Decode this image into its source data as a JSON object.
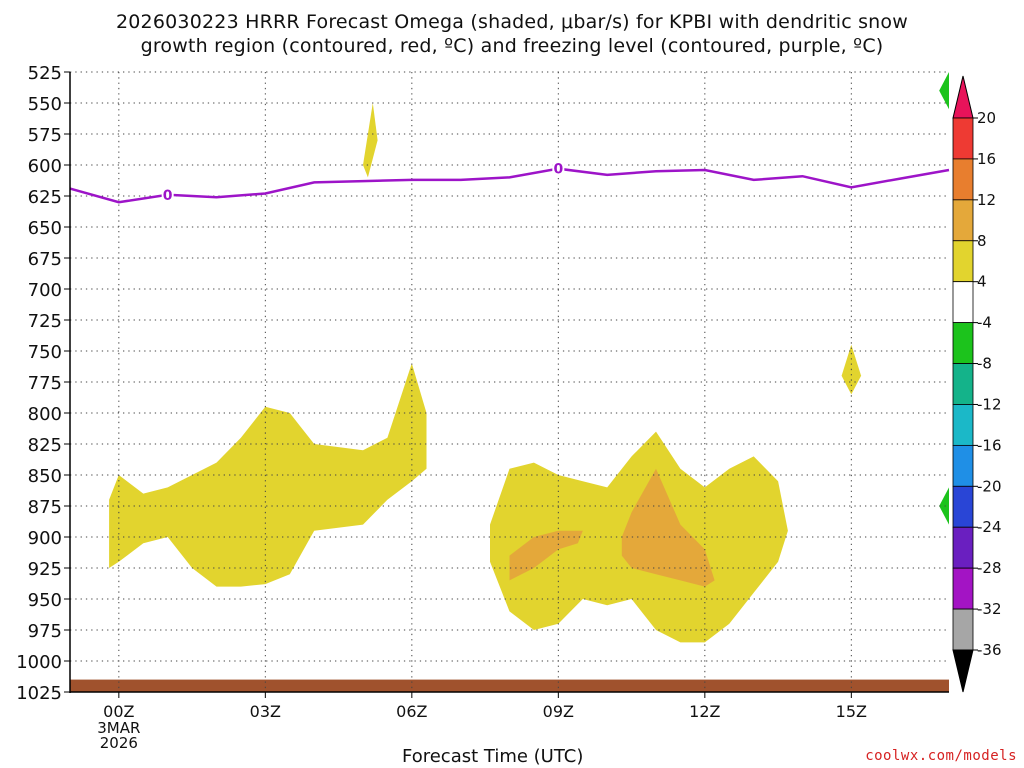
{
  "title_line1": "2026030223 HRRR Forecast Omega (shaded, μbar/s) for KPBI with dendritic snow",
  "title_line2": "growth region (contoured, red, ºC) and freezing level (contoured, purple, ºC)",
  "credit": "coolwx.com/models",
  "chart_data": {
    "type": "heatmap",
    "title": "2026030223 HRRR Forecast Omega (shaded, μbar/s) for KPBI with dendritic snow growth region (contoured, red, ºC) and freezing level (contoured, purple, ºC)",
    "xlabel": "Forecast Time (UTC)",
    "ylabel": "",
    "x_ticks": [
      "00Z",
      "03Z",
      "06Z",
      "09Z",
      "12Z",
      "15Z"
    ],
    "x_tick_hours": [
      0,
      3,
      6,
      9,
      12,
      15
    ],
    "x_date_label": [
      "3MAR",
      "2026"
    ],
    "xlim_hours": [
      -1,
      17
    ],
    "y_ticks": [
      525,
      550,
      575,
      600,
      625,
      650,
      675,
      700,
      725,
      750,
      775,
      800,
      825,
      850,
      875,
      900,
      925,
      950,
      975,
      1000,
      1025
    ],
    "ylim_hPa": [
      525,
      1025
    ],
    "grid": true,
    "colorbar": {
      "labels": [
        20,
        16,
        12,
        8,
        4,
        -4,
        -8,
        -12,
        -16,
        -20,
        -24,
        -28,
        -32,
        -36
      ],
      "colors": [
        "#e8135a",
        "#ee3a33",
        "#e87e2e",
        "#e4a83a",
        "#e2d42e",
        "#ffffff",
        "#1cc31c",
        "#14b38a",
        "#1bb8c8",
        "#1f8fe6",
        "#2945d6",
        "#6a1fc0",
        "#a314c4",
        "#a6a6a6",
        "#000000"
      ]
    },
    "series": [
      {
        "name": "0",
        "label_value": "0",
        "color": "#9d14c8",
        "hours": [
          -1,
          0,
          1,
          2,
          3,
          4,
          5,
          6,
          7,
          8,
          9,
          10,
          11,
          12,
          13,
          14,
          15,
          16,
          17
        ],
        "pressure_hPa": [
          619,
          630,
          624,
          626,
          623,
          614,
          613,
          612,
          612,
          610,
          603,
          608,
          605,
          604,
          612,
          609,
          618,
          611,
          604
        ]
      }
    ],
    "omega_4_to_8_regions": [
      {
        "hours": [
          -0.2,
          0,
          0.5,
          1,
          1.5,
          2,
          2.5,
          3,
          3.5,
          4,
          5,
          5.5,
          6,
          6.3,
          6.3,
          6,
          5.5,
          5,
          4,
          3.7,
          3.5,
          3,
          2.5,
          2,
          1.5,
          1,
          0.5,
          0,
          -0.2
        ],
        "pressure_hPa": [
          925,
          920,
          905,
          900,
          925,
          940,
          940,
          938,
          930,
          895,
          890,
          870,
          855,
          845,
          800,
          760,
          820,
          830,
          825,
          810,
          800,
          795,
          820,
          840,
          850,
          860,
          865,
          850,
          870
        ]
      },
      {
        "hours": [
          7.6,
          8,
          8.5,
          9,
          9.5,
          10,
          10.5,
          11,
          11.5,
          12,
          12.5,
          13,
          13.5,
          13.7,
          13.5,
          13,
          12.5,
          12,
          11.5,
          11,
          10.5,
          10,
          9.5,
          9,
          8.5,
          8,
          7.6
        ],
        "pressure_hPa": [
          920,
          960,
          975,
          970,
          950,
          955,
          950,
          975,
          985,
          985,
          970,
          945,
          920,
          895,
          855,
          835,
          845,
          860,
          845,
          815,
          835,
          860,
          855,
          850,
          840,
          845,
          890
        ]
      },
      {
        "hours": [
          5,
          5.2,
          5.3,
          5.1
        ],
        "pressure_hPa": [
          600,
          550,
          580,
          610
        ]
      },
      {
        "hours": [
          14.8,
          15,
          15.2,
          15
        ],
        "pressure_hPa": [
          770,
          745,
          770,
          785
        ]
      }
    ],
    "omega_8_to_12_regions": [
      {
        "hours": [
          8,
          8.5,
          9,
          9.4,
          9.5,
          9,
          8.5,
          8
        ],
        "pressure_hPa": [
          935,
          925,
          910,
          905,
          895,
          895,
          900,
          915
        ]
      },
      {
        "hours": [
          10.3,
          10.5,
          11,
          11.5,
          12,
          12.2,
          12,
          11.5,
          11,
          10.5,
          10.3
        ],
        "pressure_hPa": [
          915,
          925,
          930,
          935,
          940,
          935,
          910,
          890,
          845,
          880,
          900
        ]
      }
    ],
    "omega_negative_regions": [
      {
        "range": "-8 to -4",
        "hours": [
          17,
          16.8,
          17
        ],
        "pressure_hPa": [
          525,
          540,
          555
        ]
      },
      {
        "range": "-8 to -4",
        "hours": [
          17,
          16.8,
          17
        ],
        "pressure_hPa": [
          860,
          875,
          890
        ]
      }
    ],
    "surface_shading": {
      "color": "#a0522d",
      "pressure_hPa": 1015
    }
  }
}
